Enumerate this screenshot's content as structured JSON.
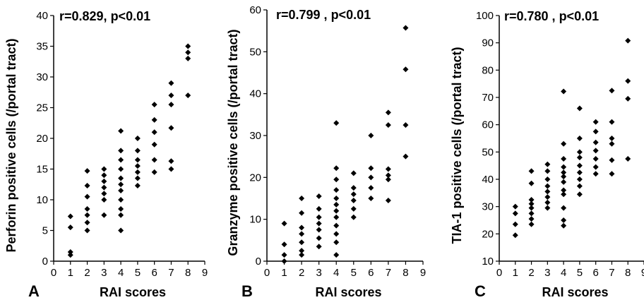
{
  "chart_data": [
    {
      "type": "scatter",
      "panel_label": "A",
      "annotation": "r=0.829, p<0.01",
      "xlabel": "RAI scores",
      "ylabel": "Perforin positive cells (/portal tract)",
      "xlim": [
        0,
        9
      ],
      "ylim": [
        0,
        40
      ],
      "x_ticks": [
        "0",
        "1",
        "2",
        "3",
        "4",
        "5",
        "6",
        "7",
        "8",
        "9"
      ],
      "y_ticks": [
        "0",
        "5",
        "10",
        "15",
        "20",
        "25",
        "30",
        "35",
        "40"
      ],
      "marker_color": "#000000",
      "series": [
        {
          "points": [
            [
              1,
              1.0
            ],
            [
              1,
              1.5
            ],
            [
              1,
              5.5
            ],
            [
              1,
              7.3
            ],
            [
              2,
              5.0
            ],
            [
              2,
              6.3
            ],
            [
              2,
              7.5
            ],
            [
              2,
              8.5
            ],
            [
              2,
              10.5
            ],
            [
              2,
              12.3
            ],
            [
              2,
              14.7
            ],
            [
              3,
              7.5
            ],
            [
              3,
              10.0
            ],
            [
              3,
              11.0
            ],
            [
              3,
              12.0
            ],
            [
              3,
              13.0
            ],
            [
              3,
              14.0
            ],
            [
              3,
              15.0
            ],
            [
              4,
              5.0
            ],
            [
              4,
              7.5
            ],
            [
              4,
              8.5
            ],
            [
              4,
              10.0
            ],
            [
              4,
              11.5
            ],
            [
              4,
              12.5
            ],
            [
              4,
              13.5
            ],
            [
              4,
              15.0
            ],
            [
              4,
              16.5
            ],
            [
              4,
              18.0
            ],
            [
              4,
              21.2
            ],
            [
              5,
              12.3
            ],
            [
              5,
              13.5
            ],
            [
              5,
              14.5
            ],
            [
              5,
              15.5
            ],
            [
              5,
              16.5
            ],
            [
              5,
              18.0
            ],
            [
              5,
              20.0
            ],
            [
              6,
              14.5
            ],
            [
              6,
              16.5
            ],
            [
              6,
              19.0
            ],
            [
              6,
              21.0
            ],
            [
              6,
              23.0
            ],
            [
              6,
              25.5
            ],
            [
              7,
              15.0
            ],
            [
              7,
              16.3
            ],
            [
              7,
              21.7
            ],
            [
              7,
              25.5
            ],
            [
              7,
              27.0
            ],
            [
              7,
              29.0
            ],
            [
              8,
              27.0
            ],
            [
              8,
              33.0
            ],
            [
              8,
              34.0
            ],
            [
              8,
              35.0
            ]
          ]
        }
      ]
    },
    {
      "type": "scatter",
      "panel_label": "B",
      "annotation": "r=0.799 , p<0.01",
      "xlabel": "RAI scores",
      "ylabel": "Granzyme positive cells (/portal tract)",
      "xlim": [
        0,
        9
      ],
      "ylim": [
        0,
        60
      ],
      "x_ticks": [
        "0",
        "1",
        "2",
        "3",
        "4",
        "5",
        "6",
        "7",
        "8",
        "9"
      ],
      "y_ticks": [
        "0",
        "10",
        "20",
        "30",
        "40",
        "50",
        "60"
      ],
      "marker_color": "#000000",
      "series": [
        {
          "points": [
            [
              1,
              0.0
            ],
            [
              1,
              1.5
            ],
            [
              1,
              4.0
            ],
            [
              1,
              9.0
            ],
            [
              2,
              1.5
            ],
            [
              2,
              2.5
            ],
            [
              2,
              4.5
            ],
            [
              2,
              6.5
            ],
            [
              2,
              8.0
            ],
            [
              2,
              11.5
            ],
            [
              2,
              15.0
            ],
            [
              3,
              3.5
            ],
            [
              3,
              5.5
            ],
            [
              3,
              7.5
            ],
            [
              3,
              9.0
            ],
            [
              3,
              10.5
            ],
            [
              3,
              12.5
            ],
            [
              3,
              15.5
            ],
            [
              4,
              1.5
            ],
            [
              4,
              4.5
            ],
            [
              4,
              6.5
            ],
            [
              4,
              8.5
            ],
            [
              4,
              10.5
            ],
            [
              4,
              12.0
            ],
            [
              4,
              13.5
            ],
            [
              4,
              15.0
            ],
            [
              4,
              17.0
            ],
            [
              4,
              19.5
            ],
            [
              4,
              22.2
            ],
            [
              4,
              33.0
            ],
            [
              5,
              10.5
            ],
            [
              5,
              12.5
            ],
            [
              5,
              14.5
            ],
            [
              5,
              16.0
            ],
            [
              5,
              17.5
            ],
            [
              5,
              21.0
            ],
            [
              6,
              15.0
            ],
            [
              6,
              17.5
            ],
            [
              6,
              20.0
            ],
            [
              6,
              22.2
            ],
            [
              6,
              30.0
            ],
            [
              7,
              14.5
            ],
            [
              7,
              19.5
            ],
            [
              7,
              20.5
            ],
            [
              7,
              22.0
            ],
            [
              7,
              32.5
            ],
            [
              7,
              35.5
            ],
            [
              8,
              25.0
            ],
            [
              8,
              32.5
            ],
            [
              8,
              45.8
            ],
            [
              8,
              55.7
            ]
          ]
        }
      ]
    },
    {
      "type": "scatter",
      "panel_label": "C",
      "annotation": "r=0.780 , p<0.01",
      "xlabel": "RAI scores",
      "ylabel": "TIA-1 positive cells (/portal tract)",
      "xlim": [
        0,
        9
      ],
      "ylim": [
        10,
        100
      ],
      "x_ticks": [
        "0",
        "1",
        "2",
        "3",
        "4",
        "5",
        "6",
        "7",
        "8",
        "9"
      ],
      "y_ticks": [
        "10",
        "20",
        "30",
        "40",
        "50",
        "60",
        "70",
        "80",
        "90",
        "100"
      ],
      "marker_color": "#000000",
      "series": [
        {
          "points": [
            [
              1,
              19.5
            ],
            [
              1,
              23.5
            ],
            [
              1,
              27.5
            ],
            [
              1,
              30.0
            ],
            [
              2,
              23.5
            ],
            [
              2,
              25.5
            ],
            [
              2,
              27.5
            ],
            [
              2,
              29.5
            ],
            [
              2,
              31.0
            ],
            [
              2,
              32.5
            ],
            [
              2,
              38.5
            ],
            [
              2,
              43.0
            ],
            [
              3,
              29.5
            ],
            [
              3,
              31.5
            ],
            [
              3,
              33.5
            ],
            [
              3,
              35.5
            ],
            [
              3,
              37.5
            ],
            [
              3,
              40.0
            ],
            [
              3,
              43.0
            ],
            [
              3,
              45.5
            ],
            [
              4,
              23.0
            ],
            [
              4,
              25.0
            ],
            [
              4,
              29.5
            ],
            [
              4,
              34.5
            ],
            [
              4,
              36.0
            ],
            [
              4,
              39.0
            ],
            [
              4,
              41.0
            ],
            [
              4,
              42.5
            ],
            [
              4,
              44.5
            ],
            [
              4,
              47.5
            ],
            [
              4,
              53.0
            ],
            [
              4,
              72.2
            ],
            [
              5,
              34.5
            ],
            [
              5,
              37.5
            ],
            [
              5,
              40.0
            ],
            [
              5,
              42.5
            ],
            [
              5,
              45.0
            ],
            [
              5,
              48.0
            ],
            [
              5,
              50.0
            ],
            [
              5,
              55.0
            ],
            [
              5,
              66.0
            ],
            [
              6,
              42.0
            ],
            [
              6,
              44.5
            ],
            [
              6,
              47.5
            ],
            [
              6,
              50.5
            ],
            [
              6,
              53.5
            ],
            [
              6,
              57.5
            ],
            [
              6,
              61.0
            ],
            [
              7,
              42.0
            ],
            [
              7,
              47.0
            ],
            [
              7,
              53.0
            ],
            [
              7,
              55.0
            ],
            [
              7,
              61.0
            ],
            [
              7,
              72.5
            ],
            [
              8,
              47.5
            ],
            [
              8,
              69.5
            ],
            [
              8,
              76.0
            ],
            [
              8,
              90.8
            ]
          ]
        }
      ]
    }
  ]
}
